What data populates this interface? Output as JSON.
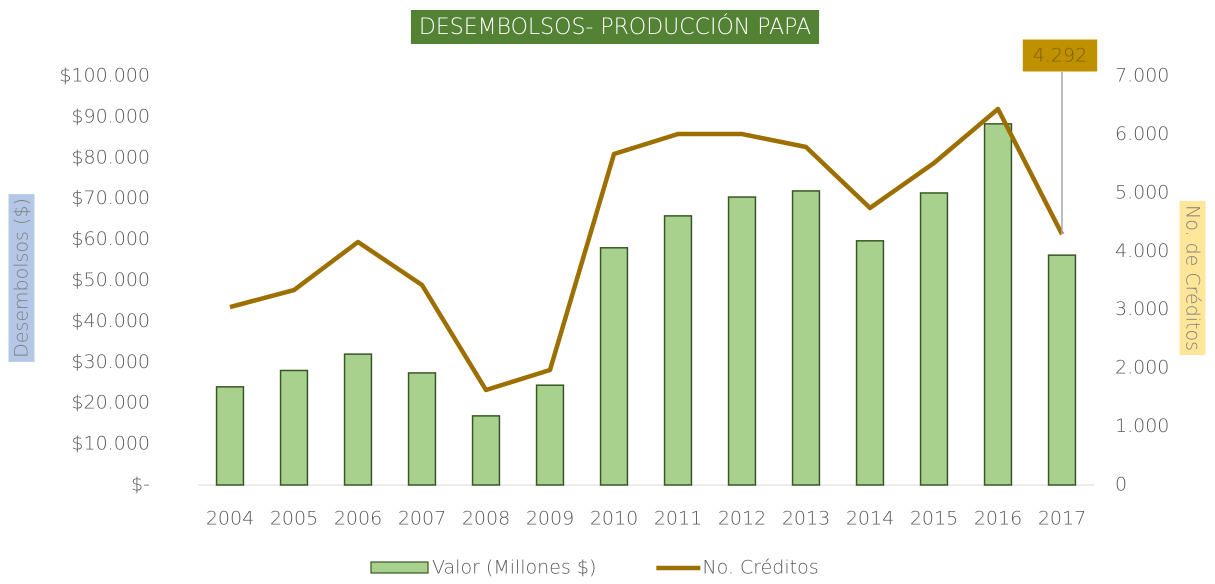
{
  "chart_data": {
    "type": "bar_line",
    "title": "DESEMBOLSOS- PRODUCCIÓN PAPA",
    "y_label": "Desembolsos ($)",
    "y2_label": "No. de Créditos",
    "categories": [
      "2004",
      "2005",
      "2006",
      "2007",
      "2008",
      "2009",
      "2010",
      "2011",
      "2012",
      "2013",
      "2014",
      "2015",
      "2016",
      "2017"
    ],
    "series": [
      {
        "name": "Valor (Millones $)",
        "type": "bar",
        "color": "#a9d18e",
        "edge_color": "#385723",
        "values": [
          24000,
          28000,
          32000,
          27400,
          16900,
          24400,
          58000,
          65800,
          70400,
          71900,
          59700,
          71400,
          88300,
          56200
        ]
      },
      {
        "name": "No. Créditos",
        "type": "line",
        "axis": "y2",
        "color": "#9c6f00",
        "values": [
          3046,
          3337,
          4159,
          3423,
          1626,
          1968,
          5665,
          6007,
          6007,
          5785,
          4741,
          5511,
          6435,
          4292
        ],
        "value_labels": [
          null,
          null,
          null,
          null,
          null,
          null,
          null,
          null,
          null,
          null,
          null,
          null,
          null,
          "4.292"
        ]
      }
    ],
    "ylim": [
      0,
      100000
    ],
    "yticks": [
      {
        "value": 0,
        "label": "$-"
      },
      {
        "value": 10000,
        "label": "$10.000"
      },
      {
        "value": 20000,
        "label": "$20.000"
      },
      {
        "value": 30000,
        "label": "$30.000"
      },
      {
        "value": 40000,
        "label": "$40.000"
      },
      {
        "value": 50000,
        "label": "$50.000"
      },
      {
        "value": 60000,
        "label": "$60.000"
      },
      {
        "value": 70000,
        "label": "$70.000"
      },
      {
        "value": 80000,
        "label": "$80.000"
      },
      {
        "value": 90000,
        "label": "$90.000"
      },
      {
        "value": 100000,
        "label": "$100.000"
      }
    ],
    "y2lim": [
      0,
      7000
    ],
    "y2ticks": [
      0,
      {
        "value": 1000,
        "label": "1.000"
      },
      {
        "value": 2000,
        "label": "2.000"
      },
      {
        "value": 3000,
        "label": "3.000"
      },
      {
        "value": 4000,
        "label": "4.000"
      },
      {
        "value": 5000,
        "label": "5.000"
      },
      {
        "value": 6000,
        "label": "6.000"
      },
      {
        "value": 7000,
        "label": "7.000"
      }
    ],
    "legend": "bottom"
  }
}
